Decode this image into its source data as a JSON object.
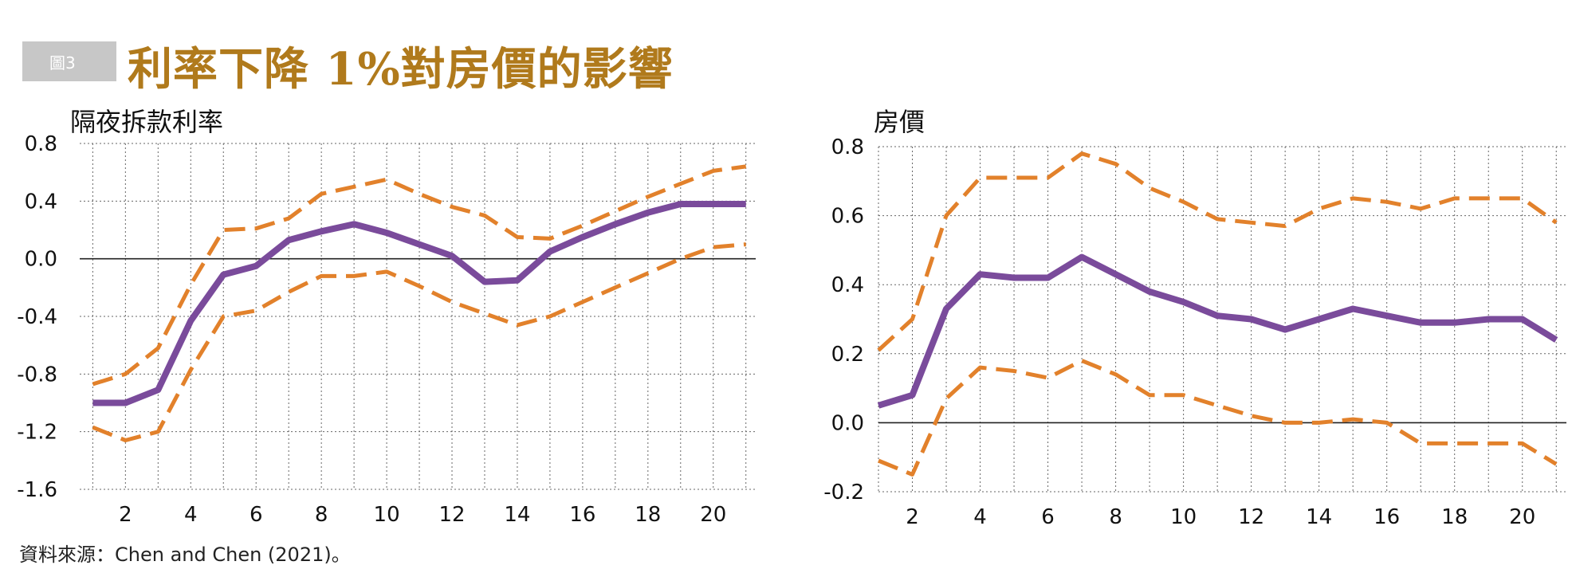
{
  "header": {
    "badge": "圖3",
    "title": "利率下降 1%對房價的影響"
  },
  "source": "資料來源：Chen and Chen (2021)。",
  "colors": {
    "estimate": "#7a4b9b",
    "band": "#e2812b",
    "title": "#b07a1c",
    "badge": "#c7c7c7"
  },
  "chart_data": [
    {
      "type": "line",
      "title": "隔夜拆款利率",
      "xlabel": "",
      "ylabel": "",
      "x": [
        1,
        2,
        3,
        4,
        5,
        6,
        7,
        8,
        9,
        10,
        11,
        12,
        13,
        14,
        15,
        16,
        17,
        18,
        19,
        20,
        21
      ],
      "xticks": [
        2,
        4,
        6,
        8,
        10,
        12,
        14,
        16,
        18,
        20
      ],
      "yticks": [
        0.8,
        0.4,
        0.0,
        -0.4,
        -0.8,
        -1.2,
        -1.6
      ],
      "ytick_labels": [
        "0.8",
        "0.4",
        "0.0",
        "-0.4",
        "-0.8",
        "-1.2",
        "-1.6"
      ],
      "xlim": [
        0.6,
        21.3
      ],
      "ylim": [
        -1.6,
        0.8
      ],
      "grid": true,
      "series": [
        {
          "role": "upper",
          "style": "dashed",
          "values": [
            -0.87,
            -0.8,
            -0.62,
            -0.18,
            0.2,
            0.21,
            0.28,
            0.45,
            0.5,
            0.55,
            0.45,
            0.36,
            0.3,
            0.15,
            0.14,
            0.23,
            0.33,
            0.43,
            0.52,
            0.61,
            0.64
          ]
        },
        {
          "role": "estimate",
          "style": "solid",
          "values": [
            -1.0,
            -1.0,
            -0.91,
            -0.43,
            -0.11,
            -0.05,
            0.13,
            0.19,
            0.24,
            0.18,
            0.1,
            0.02,
            -0.16,
            -0.15,
            0.05,
            0.15,
            0.24,
            0.32,
            0.38,
            0.38,
            0.38
          ]
        },
        {
          "role": "lower",
          "style": "dashed",
          "values": [
            -1.17,
            -1.26,
            -1.2,
            -0.77,
            -0.4,
            -0.36,
            -0.23,
            -0.12,
            -0.12,
            -0.09,
            -0.19,
            -0.3,
            -0.38,
            -0.46,
            -0.4,
            -0.3,
            -0.2,
            -0.1,
            0.0,
            0.08,
            0.1
          ]
        }
      ]
    },
    {
      "type": "line",
      "title": "房價",
      "xlabel": "",
      "ylabel": "",
      "x": [
        1,
        2,
        3,
        4,
        5,
        6,
        7,
        8,
        9,
        10,
        11,
        12,
        13,
        14,
        15,
        16,
        17,
        18,
        19,
        20,
        21
      ],
      "xticks": [
        2,
        4,
        6,
        8,
        10,
        12,
        14,
        16,
        18,
        20
      ],
      "yticks": [
        0.8,
        0.6,
        0.4,
        0.2,
        0.0,
        -0.2
      ],
      "ytick_labels": [
        "0.8",
        "0.6",
        "0.4",
        "0.2",
        "0.0",
        "-0.2"
      ],
      "xlim": [
        1.0,
        21.3
      ],
      "ylim": [
        -0.2,
        0.8
      ],
      "grid": true,
      "series": [
        {
          "role": "upper",
          "style": "dashed",
          "values": [
            0.21,
            0.3,
            0.6,
            0.71,
            0.71,
            0.71,
            0.78,
            0.75,
            0.68,
            0.64,
            0.59,
            0.58,
            0.57,
            0.62,
            0.65,
            0.64,
            0.62,
            0.65,
            0.65,
            0.65,
            0.58
          ]
        },
        {
          "role": "estimate",
          "style": "solid",
          "values": [
            0.05,
            0.08,
            0.33,
            0.43,
            0.42,
            0.42,
            0.48,
            0.43,
            0.38,
            0.35,
            0.31,
            0.3,
            0.27,
            0.3,
            0.33,
            0.31,
            0.29,
            0.29,
            0.3,
            0.3,
            0.24
          ]
        },
        {
          "role": "lower",
          "style": "dashed",
          "values": [
            -0.11,
            -0.15,
            0.07,
            0.16,
            0.15,
            0.13,
            0.18,
            0.14,
            0.08,
            0.08,
            0.05,
            0.02,
            0.0,
            0.0,
            0.01,
            0.0,
            -0.06,
            -0.06,
            -0.06,
            -0.06,
            -0.12
          ]
        }
      ]
    }
  ]
}
